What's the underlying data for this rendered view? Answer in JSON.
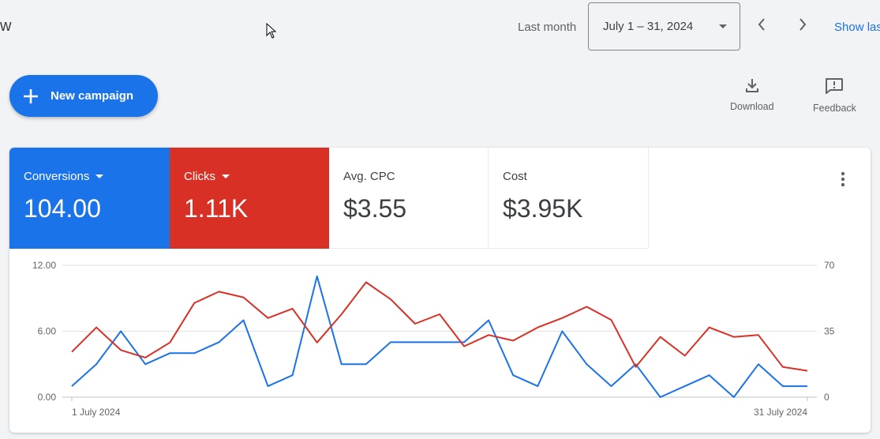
{
  "header": {
    "title_fragment": "w",
    "period_label": "Last month",
    "date_range": "July 1 – 31, 2024",
    "show_link": "Show las"
  },
  "toolbar": {
    "new_campaign": "New campaign",
    "download": "Download",
    "feedback": "Feedback"
  },
  "metrics": [
    {
      "label": "Conversions",
      "value": "104.00",
      "color": "#1a73e8"
    },
    {
      "label": "Clicks",
      "value": "1.11K",
      "color": "#d93025"
    },
    {
      "label": "Avg. CPC",
      "value": "$3.55"
    },
    {
      "label": "Cost",
      "value": "$3.95K"
    }
  ],
  "icons": [
    "cursor-icon",
    "caret-down-icon",
    "chevron-left-icon",
    "chevron-right-icon",
    "plus-icon",
    "download-icon",
    "feedback-icon",
    "more-vert-icon"
  ],
  "chart_data": {
    "type": "line",
    "x": [
      "1 July 2024",
      "2",
      "3",
      "4",
      "5",
      "6",
      "7",
      "8",
      "9",
      "10",
      "11",
      "12",
      "13",
      "14",
      "15",
      "16",
      "17",
      "18",
      "19",
      "20",
      "21",
      "22",
      "23",
      "24",
      "25",
      "26",
      "27",
      "28",
      "29",
      "30",
      "31 July 2024"
    ],
    "x_tick_labels": [
      "1 July 2024",
      "31 July 2024"
    ],
    "series": [
      {
        "name": "Conversions",
        "axis": "left",
        "color": "#1a73e8",
        "values": [
          1,
          3,
          6,
          3,
          4,
          4,
          5,
          7,
          1,
          2,
          11,
          3,
          3,
          5,
          5,
          5,
          5,
          7,
          2,
          1,
          6,
          3,
          1,
          3,
          0,
          1,
          2,
          0,
          3,
          1,
          1
        ]
      },
      {
        "name": "Clicks",
        "axis": "right",
        "color": "#d93025",
        "values": [
          24,
          37,
          25,
          21,
          29,
          50,
          56,
          53,
          42,
          47,
          29,
          44,
          61,
          52,
          39,
          44,
          27,
          33,
          30,
          37,
          42,
          48,
          41,
          16,
          32,
          22,
          37,
          32,
          33,
          16,
          14
        ]
      }
    ],
    "y_left": {
      "ticks": [
        "0.00",
        "6.00",
        "12.00"
      ],
      "ylim": [
        0,
        12
      ]
    },
    "y_right": {
      "ticks": [
        "0",
        "35",
        "70"
      ],
      "ylim": [
        0,
        70
      ]
    },
    "grid": true
  }
}
